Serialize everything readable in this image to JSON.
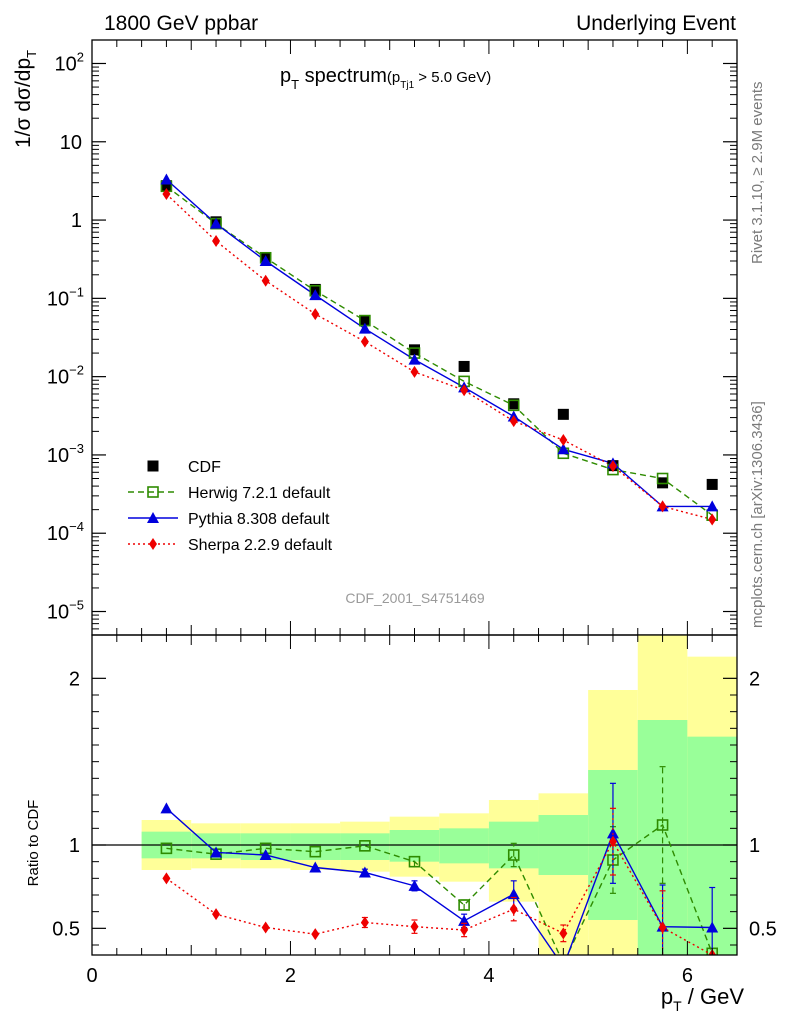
{
  "header": {
    "left": "1800 GeV ppbar",
    "right": "Underlying Event"
  },
  "side_labels": {
    "rivet": "Rivet 3.1.10, ≥ 2.9M events",
    "mcplots": "mcplots.cern.ch [arXiv:1306.3436]"
  },
  "chart_data": [
    {
      "type": "scatter",
      "title_main": "p",
      "title_sub": "T",
      "title_word": " spectrum",
      "title_cut_open": "(p",
      "title_cut_sub": "Tj1",
      "title_cut_rest": " > 5.0 GeV)",
      "ylabel": "1/σ dσ/dp",
      "ylabel_sub": "T",
      "yscale": "log",
      "xlim": [
        0,
        6.5
      ],
      "ylim_exp": [
        -5.3,
        2.3
      ],
      "yticks": [
        {
          "exp": 2,
          "label": "10",
          "sup": "2"
        },
        {
          "exp": 1,
          "label": "10",
          "sup": ""
        },
        {
          "exp": 0,
          "label": "1",
          "sup": ""
        },
        {
          "exp": -1,
          "label": "10",
          "sup": "−1"
        },
        {
          "exp": -2,
          "label": "10",
          "sup": "−2"
        },
        {
          "exp": -3,
          "label": "10",
          "sup": "−3"
        },
        {
          "exp": -4,
          "label": "10",
          "sup": "−4"
        },
        {
          "exp": -5,
          "label": "10",
          "sup": "−5"
        }
      ],
      "watermark": "CDF_2001_S4751469",
      "legend_position": "lower-left",
      "x": [
        0.75,
        1.25,
        1.75,
        2.25,
        2.75,
        3.25,
        3.75,
        4.25,
        4.75,
        5.25,
        5.75,
        6.25
      ],
      "series": [
        {
          "name": "CDF",
          "color": "#000000",
          "marker": "square",
          "line": "none",
          "values": [
            2.75,
            0.95,
            0.33,
            0.13,
            0.052,
            0.022,
            0.0135,
            0.0045,
            0.0033,
            0.00073,
            0.00044,
            0.00042
          ]
        },
        {
          "name": "Herwig 7.2.1 default",
          "color": "#2e8b00",
          "marker": "open-square",
          "line": "dashed",
          "values": [
            2.7,
            0.9,
            0.33,
            0.125,
            0.052,
            0.02,
            0.0087,
            0.0043,
            0.00105,
            0.00065,
            0.0005,
            0.00017
          ]
        },
        {
          "name": "Pythia 8.308 default",
          "color": "#0000dd",
          "marker": "triangle",
          "line": "solid",
          "values": [
            3.3,
            0.9,
            0.3,
            0.11,
            0.041,
            0.0165,
            0.0073,
            0.0031,
            0.00118,
            0.00078,
            0.00022,
            0.00022
          ]
        },
        {
          "name": "Sherpa 2.2.9 default",
          "color": "#ee0000",
          "marker": "diamond",
          "line": "dotted",
          "values": [
            2.15,
            0.54,
            0.168,
            0.063,
            0.028,
            0.0115,
            0.0067,
            0.0027,
            0.00155,
            0.00072,
            0.00022,
            0.00015
          ]
        }
      ]
    },
    {
      "type": "scatter",
      "ylabel": "Ratio to CDF",
      "xlabel": "p",
      "xlabel_sub": "T",
      "xlabel_unit": " / GeV",
      "xlim": [
        0,
        6.5
      ],
      "ylim": [
        0.34,
        2.26
      ],
      "xticks": [
        0,
        2,
        4,
        6
      ],
      "yticks": [
        0.5,
        1,
        2
      ],
      "ytick_labels": [
        "0.5",
        "1",
        "2"
      ],
      "reference_line": 1,
      "bands": [
        {
          "x0": 0.5,
          "x1": 1.0,
          "green": [
            0.92,
            1.08
          ],
          "yellow": [
            0.85,
            1.15
          ]
        },
        {
          "x0": 1.0,
          "x1": 1.5,
          "green": [
            0.92,
            1.07
          ],
          "yellow": [
            0.86,
            1.13
          ]
        },
        {
          "x0": 1.5,
          "x1": 2.0,
          "green": [
            0.91,
            1.07
          ],
          "yellow": [
            0.86,
            1.13
          ]
        },
        {
          "x0": 2.0,
          "x1": 2.5,
          "green": [
            0.91,
            1.07
          ],
          "yellow": [
            0.85,
            1.13
          ]
        },
        {
          "x0": 2.5,
          "x1": 3.0,
          "green": [
            0.91,
            1.07
          ],
          "yellow": [
            0.84,
            1.14
          ]
        },
        {
          "x0": 3.0,
          "x1": 3.5,
          "green": [
            0.9,
            1.09
          ],
          "yellow": [
            0.81,
            1.17
          ]
        },
        {
          "x0": 3.5,
          "x1": 4.0,
          "green": [
            0.89,
            1.1
          ],
          "yellow": [
            0.78,
            1.19
          ]
        },
        {
          "x0": 4.0,
          "x1": 4.5,
          "green": [
            0.86,
            1.14
          ],
          "yellow": [
            0.66,
            1.27
          ]
        },
        {
          "x0": 4.5,
          "x1": 5.0,
          "green": [
            0.82,
            1.18
          ],
          "yellow": [
            0.34,
            1.31
          ]
        },
        {
          "x0": 5.0,
          "x1": 5.5,
          "green": [
            0.55,
            1.45
          ],
          "yellow": [
            0.34,
            1.93
          ]
        },
        {
          "x0": 5.5,
          "x1": 6.0,
          "green": [
            0.34,
            1.75
          ],
          "yellow": [
            0.34,
            2.26
          ]
        },
        {
          "x0": 6.0,
          "x1": 6.5,
          "green": [
            0.34,
            1.65
          ],
          "yellow": [
            0.34,
            2.13
          ]
        }
      ],
      "series": [
        {
          "name": "Herwig 7.2.1 default",
          "color": "#2e8b00",
          "marker": "open-square",
          "line": "dashed",
          "values": [
            0.98,
            0.945,
            0.98,
            0.96,
            0.995,
            0.9,
            0.64,
            0.94,
            0.29,
            0.91,
            1.12,
            0.35
          ],
          "err": [
            0,
            0,
            0,
            0,
            0,
            0.03,
            0.03,
            0.07,
            0,
            0.2,
            0.35,
            0
          ]
        },
        {
          "name": "Pythia 8.308 default",
          "color": "#0000dd",
          "marker": "triangle",
          "line": "solid",
          "values": [
            1.22,
            0.955,
            0.94,
            0.865,
            0.835,
            0.755,
            0.545,
            0.705,
            0.27,
            1.07,
            0.51,
            0.505
          ],
          "err": [
            0,
            0,
            0,
            0,
            0.02,
            0.03,
            0.04,
            0.08,
            0,
            0.3,
            0.25,
            0.24
          ]
        },
        {
          "name": "Sherpa 2.2.9 default",
          "color": "#ee0000",
          "marker": "diamond",
          "line": "dotted",
          "values": [
            0.8,
            0.585,
            0.505,
            0.465,
            0.535,
            0.51,
            0.49,
            0.615,
            0.47,
            1.02,
            0.505,
            0.34
          ],
          "err": [
            0,
            0,
            0,
            0,
            0.03,
            0.04,
            0.04,
            0.07,
            0.05,
            0.2,
            0.22,
            0
          ]
        }
      ]
    }
  ]
}
